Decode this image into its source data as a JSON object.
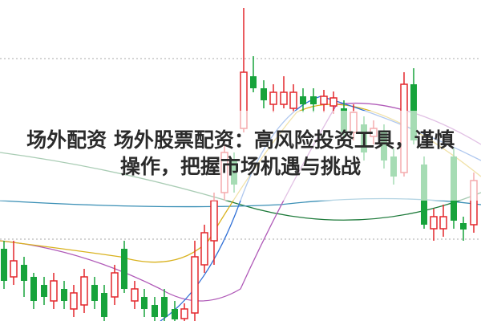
{
  "banner": {
    "title_lines": [
      "场外配资 场外股票配资：高风险投资工具，谨慎",
      "操作，把握市场机遇与挑战"
    ]
  }
}
